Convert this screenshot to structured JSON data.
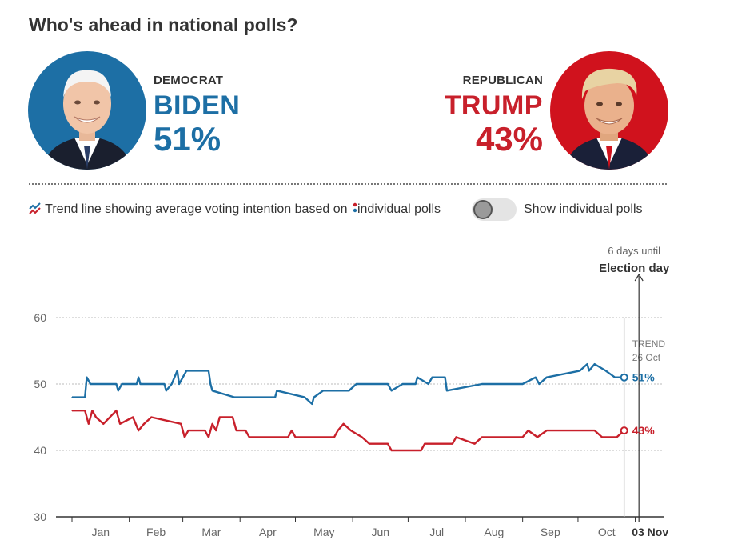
{
  "page": {
    "title": "Who's ahead in national polls?"
  },
  "candidates": {
    "dem": {
      "party": "DEMOCRAT",
      "name": "BIDEN",
      "percent": "51%",
      "color": "#1d6fa5"
    },
    "rep": {
      "party": "REPUBLICAN",
      "name": "TRUMP",
      "percent": "43%",
      "color": "#c8202b"
    }
  },
  "legend": {
    "text_before": "Trend line showing average voting intention based on",
    "text_after": "individual polls",
    "icon": "trend-line-icon",
    "dot_icon": "poll-dot-icon"
  },
  "toggle": {
    "label": "Show individual polls",
    "on": false
  },
  "chart_data": {
    "type": "line",
    "ylim": [
      30,
      60
    ],
    "yticks": [
      30,
      40,
      50,
      60
    ],
    "grid": true,
    "x_range": [
      "2020-01-01",
      "2020-11-03"
    ],
    "x_tick_labels": [
      "Jan",
      "Feb",
      "Mar",
      "Apr",
      "May",
      "Jun",
      "Jul",
      "Aug",
      "Sep",
      "Oct"
    ],
    "election_day_label": "03 Nov",
    "annotation": {
      "line1": "6 days until",
      "line2": "Election day"
    },
    "trend_marker": {
      "label": "TREND",
      "date": "26 Oct"
    },
    "series": [
      {
        "name": "BIDEN",
        "color": "#1d6fa5",
        "end_label": "51%",
        "points": [
          [
            "2020-01-01",
            48
          ],
          [
            "2020-01-08",
            48
          ],
          [
            "2020-01-09",
            51
          ],
          [
            "2020-01-11",
            50
          ],
          [
            "2020-01-25",
            50
          ],
          [
            "2020-01-26",
            49
          ],
          [
            "2020-01-28",
            50
          ],
          [
            "2020-02-05",
            50
          ],
          [
            "2020-02-06",
            51
          ],
          [
            "2020-02-07",
            50
          ],
          [
            "2020-02-20",
            50
          ],
          [
            "2020-02-21",
            49
          ],
          [
            "2020-02-24",
            50
          ],
          [
            "2020-02-27",
            52
          ],
          [
            "2020-02-28",
            50
          ],
          [
            "2020-03-03",
            52
          ],
          [
            "2020-03-15",
            52
          ],
          [
            "2020-03-16",
            50
          ],
          [
            "2020-03-17",
            49
          ],
          [
            "2020-03-29",
            48
          ],
          [
            "2020-04-20",
            48
          ],
          [
            "2020-04-21",
            49
          ],
          [
            "2020-05-06",
            48
          ],
          [
            "2020-05-10",
            47
          ],
          [
            "2020-05-11",
            48
          ],
          [
            "2020-05-16",
            49
          ],
          [
            "2020-05-30",
            49
          ],
          [
            "2020-06-03",
            50
          ],
          [
            "2020-06-20",
            50
          ],
          [
            "2020-06-22",
            49
          ],
          [
            "2020-06-28",
            50
          ],
          [
            "2020-07-05",
            50
          ],
          [
            "2020-07-06",
            51
          ],
          [
            "2020-07-12",
            50
          ],
          [
            "2020-07-14",
            51
          ],
          [
            "2020-07-21",
            51
          ],
          [
            "2020-07-22",
            49
          ],
          [
            "2020-08-10",
            50
          ],
          [
            "2020-09-01",
            50
          ],
          [
            "2020-09-08",
            51
          ],
          [
            "2020-09-10",
            50
          ],
          [
            "2020-09-14",
            51
          ],
          [
            "2020-10-02",
            52
          ],
          [
            "2020-10-06",
            53
          ],
          [
            "2020-10-07",
            52
          ],
          [
            "2020-10-10",
            53
          ],
          [
            "2020-10-16",
            52
          ],
          [
            "2020-10-21",
            51
          ],
          [
            "2020-10-26",
            51
          ]
        ]
      },
      {
        "name": "TRUMP",
        "color": "#c8202b",
        "end_label": "43%",
        "points": [
          [
            "2020-01-01",
            46
          ],
          [
            "2020-01-08",
            46
          ],
          [
            "2020-01-10",
            44
          ],
          [
            "2020-01-12",
            46
          ],
          [
            "2020-01-14",
            45
          ],
          [
            "2020-01-18",
            44
          ],
          [
            "2020-01-25",
            46
          ],
          [
            "2020-01-27",
            44
          ],
          [
            "2020-02-03",
            45
          ],
          [
            "2020-02-06",
            43
          ],
          [
            "2020-02-09",
            44
          ],
          [
            "2020-02-13",
            45
          ],
          [
            "2020-02-29",
            44
          ],
          [
            "2020-03-02",
            42
          ],
          [
            "2020-03-04",
            43
          ],
          [
            "2020-03-13",
            43
          ],
          [
            "2020-03-15",
            42
          ],
          [
            "2020-03-17",
            44
          ],
          [
            "2020-03-19",
            43
          ],
          [
            "2020-03-21",
            45
          ],
          [
            "2020-03-28",
            45
          ],
          [
            "2020-03-30",
            43
          ],
          [
            "2020-04-04",
            43
          ],
          [
            "2020-04-06",
            42
          ],
          [
            "2020-04-27",
            42
          ],
          [
            "2020-04-29",
            43
          ],
          [
            "2020-05-01",
            42
          ],
          [
            "2020-05-22",
            42
          ],
          [
            "2020-05-24",
            43
          ],
          [
            "2020-05-27",
            44
          ],
          [
            "2020-05-31",
            43
          ],
          [
            "2020-06-06",
            42
          ],
          [
            "2020-06-10",
            41
          ],
          [
            "2020-06-20",
            41
          ],
          [
            "2020-06-22",
            40
          ],
          [
            "2020-07-08",
            40
          ],
          [
            "2020-07-10",
            41
          ],
          [
            "2020-07-25",
            41
          ],
          [
            "2020-07-27",
            42
          ],
          [
            "2020-08-06",
            41
          ],
          [
            "2020-08-10",
            42
          ],
          [
            "2020-09-01",
            42
          ],
          [
            "2020-09-04",
            43
          ],
          [
            "2020-09-09",
            42
          ],
          [
            "2020-09-14",
            43
          ],
          [
            "2020-10-10",
            43
          ],
          [
            "2020-10-14",
            42
          ],
          [
            "2020-10-22",
            42
          ],
          [
            "2020-10-26",
            43
          ]
        ]
      }
    ]
  }
}
